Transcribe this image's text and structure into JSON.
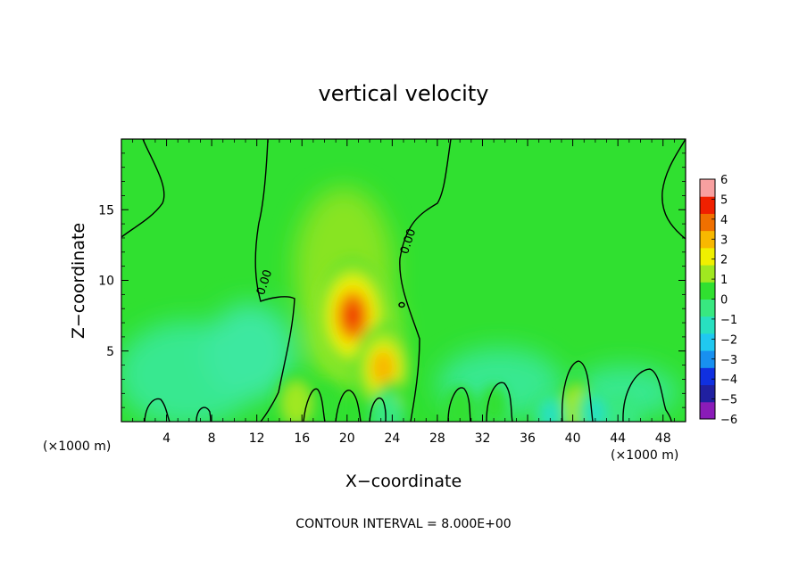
{
  "chart_data": {
    "type": "heatmap",
    "title": "vertical velocity",
    "xlabel": "X−coordinate",
    "ylabel": "Z−coordinate",
    "x_unit_left": "(×1000 m)",
    "x_unit_right": "(×1000 m)",
    "xlim": [
      0,
      50
    ],
    "ylim": [
      0,
      20
    ],
    "x_ticks": [
      4,
      8,
      12,
      16,
      20,
      24,
      28,
      32,
      36,
      40,
      44,
      48
    ],
    "x_tick_labels": [
      "4",
      "8",
      "12",
      "16",
      "20",
      "24",
      "28",
      "32",
      "36",
      "40",
      "44",
      "48"
    ],
    "y_ticks": [
      5,
      10,
      15
    ],
    "y_tick_labels": [
      "5",
      "10",
      "15"
    ],
    "colorbar": {
      "min": -6,
      "max": 6,
      "labels": [
        "6",
        "5",
        "4",
        "3",
        "2",
        "1",
        "0",
        "−1",
        "−2",
        "−3",
        "−4",
        "−5",
        "−6"
      ],
      "colors": [
        "#8a1cb8",
        "#2020a0",
        "#1030e0",
        "#1890f0",
        "#20c8f0",
        "#28e0c0",
        "#38e880",
        "#30e030",
        "#a0e820",
        "#f0f000",
        "#f8b800",
        "#f07000",
        "#f02000",
        "#f8a0a0"
      ]
    },
    "background_value_color": "#30e030",
    "contour_label": "0.00",
    "contour_interval_text": "CONTOUR INTERVAL = 8.000E+00",
    "features": [
      {
        "x": 15.5,
        "z": 1.3,
        "w": 1.6
      },
      {
        "x": 20.5,
        "z": 7.5,
        "w": 4.5
      },
      {
        "x": 23.2,
        "z": 3.8,
        "w": 3.2
      },
      {
        "x": 24.0,
        "z": 1.0,
        "w": 1.2
      },
      {
        "x": 30.0,
        "z": 0.9,
        "w": 0.8
      },
      {
        "x": 40.4,
        "z": 1.0,
        "w": 1.6
      },
      {
        "x": 33.0,
        "z": 1.2,
        "w": 0.4
      },
      {
        "x": 18.0,
        "z": 1.2,
        "w": 0.5
      },
      {
        "x": 42.0,
        "z": 0.6,
        "w": -1.2
      },
      {
        "x": 23.5,
        "z": 0.4,
        "w": -0.8
      },
      {
        "x": 38.0,
        "z": 0.5,
        "w": -0.9
      },
      {
        "x": 44.5,
        "z": 0.5,
        "w": -0.8
      }
    ]
  }
}
